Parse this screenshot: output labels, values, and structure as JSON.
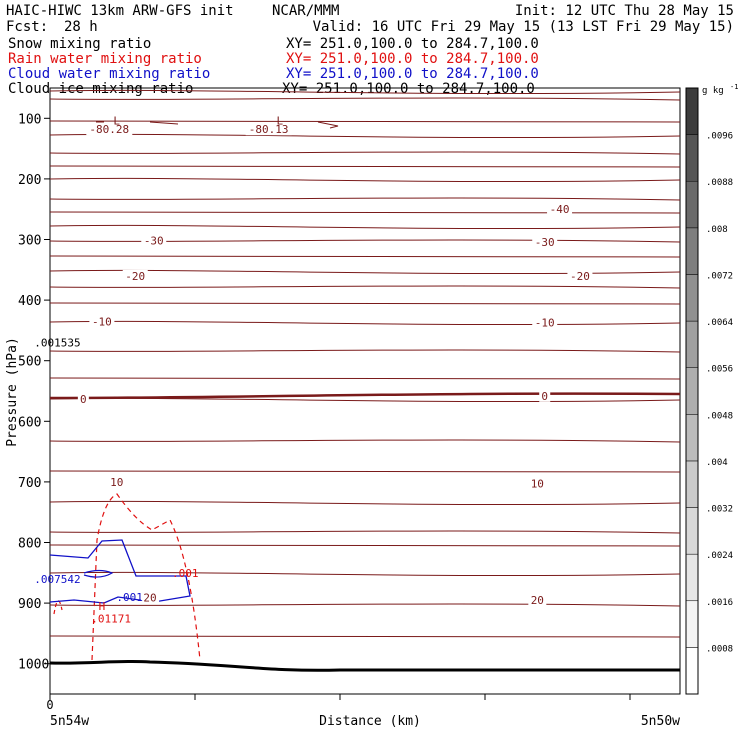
{
  "header": {
    "model": "HAIC-HIWC 13km ARW-GFS init",
    "org": "NCAR/MMM",
    "init": "Init: 12 UTC Thu 28 May 15",
    "fcst_label": "Fcst:",
    "fcst_value": "28 h",
    "valid": "Valid: 16 UTC Fri 29 May 15 (13 LST Fri 29 May 15)",
    "fields": [
      {
        "name": "Snow mixing ratio",
        "xy": "XY= 251.0,100.0 to 284.7,100.0",
        "color": "#000000"
      },
      {
        "name": "Rain water mixing ratio",
        "xy": "XY= 251.0,100.0 to 284.7,100.0",
        "color": "#e01010"
      },
      {
        "name": "Cloud water mixing ratio",
        "xy": "XY= 251.0,100.0 to 284.7,100.0",
        "color": "#1010c8"
      },
      {
        "name": "Cloud ice mixing ratio",
        "xy": "XY= 251.0,100.0 to 284.7,100.0",
        "color": "#000000"
      }
    ]
  },
  "colorbar": {
    "unit_label": "g kg",
    "unit_exp": "-1",
    "levels": [
      "0",
      ".0008",
      ".0016",
      ".0024",
      ".0032",
      ".004",
      ".0048",
      ".0056",
      ".0064",
      ".0072",
      ".008",
      ".0088",
      ".0096"
    ],
    "colors": [
      "#ffffff",
      "#f4f4f4",
      "#e6e6e6",
      "#d8d8d8",
      "#cacaca",
      "#bcbcbc",
      "#aeaeae",
      "#a0a0a0",
      "#909090",
      "#7e7e7e",
      "#6a6a6a",
      "#555555",
      "#3c3c3c"
    ]
  },
  "chart_data": {
    "type": "cross-section contour",
    "ylabel": "Pressure (hPa)",
    "xlabel": "Distance (km)",
    "x_tick_labels": [
      "0"
    ],
    "x_left_label": "5n54w",
    "x_right_label": "5n50w",
    "y_ticks": [
      100,
      200,
      300,
      400,
      500,
      600,
      700,
      800,
      900,
      1000
    ],
    "ylim": [
      1050,
      50
    ],
    "xlim": [
      0,
      34
    ],
    "temperature_color": "#7a1a1a",
    "temperature_labels": [
      {
        "text": "-80.28",
        "x": 3.2,
        "p": 118
      },
      {
        "text": "-80.13",
        "x": 11.8,
        "p": 118
      },
      {
        "text": "-40",
        "x": 27.5,
        "p": 250
      },
      {
        "text": "-30",
        "x": 5.6,
        "p": 302
      },
      {
        "text": "-30",
        "x": 26.7,
        "p": 304
      },
      {
        "text": "-20",
        "x": 4.6,
        "p": 360
      },
      {
        "text": "-20",
        "x": 28.6,
        "p": 360
      },
      {
        "text": "-10",
        "x": 2.8,
        "p": 435
      },
      {
        "text": "-10",
        "x": 26.7,
        "p": 437
      },
      {
        "text": "0",
        "x": 1.8,
        "p": 563
      },
      {
        "text": "0",
        "x": 26.7,
        "p": 558
      },
      {
        "text": "10",
        "x": 3.6,
        "p": 700
      },
      {
        "text": "10",
        "x": 26.3,
        "p": 703
      },
      {
        "text": "20",
        "x": 5.4,
        "p": 891
      },
      {
        "text": "20",
        "x": 26.3,
        "p": 895
      }
    ],
    "low_markers": [
      {
        "text": "L",
        "x": 3.6,
        "p": 104
      },
      {
        "text": "L",
        "x": 12.4,
        "p": 104
      }
    ],
    "high_marker": {
      "text": "H",
      "x": 2.8,
      "p": 905
    },
    "rain_labels": [
      {
        "text": ".01171",
        "x": 3.3,
        "p": 925
      },
      {
        "text": ".001",
        "x": 7.3,
        "p": 850
      }
    ],
    "cloud_labels": [
      {
        "text": ".001",
        "x": 4.3,
        "p": 890
      },
      {
        "text": ".007542",
        "x": 0.4,
        "p": 860
      }
    ],
    "snow_labels": [
      {
        "text": ".001535",
        "x": 0.4,
        "p": 470
      }
    ]
  }
}
